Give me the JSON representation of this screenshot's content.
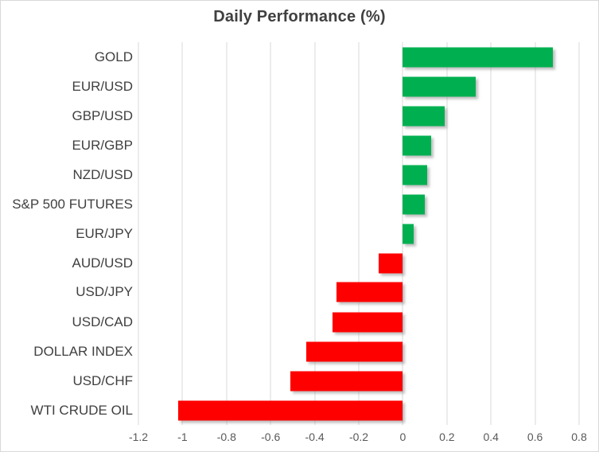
{
  "chart_data": {
    "type": "bar",
    "orientation": "horizontal",
    "title": "Daily Performance (%)",
    "categories": [
      "GOLD",
      "EUR/USD",
      "GBP/USD",
      "EUR/GBP",
      "NZD/USD",
      "S&P 500 FUTURES",
      "EUR/JPY",
      "AUD/USD",
      "USD/JPY",
      "USD/CAD",
      "DOLLAR INDEX",
      "USD/CHF",
      "WTI CRUDE OIL"
    ],
    "values": [
      0.68,
      0.33,
      0.19,
      0.13,
      0.11,
      0.1,
      0.05,
      -0.11,
      -0.3,
      -0.32,
      -0.44,
      -0.51,
      -1.02
    ],
    "xlim": [
      -1.2,
      0.8
    ],
    "xticks": [
      -1.2,
      -1,
      -0.8,
      -0.6,
      -0.4,
      -0.2,
      0,
      0.2,
      0.4,
      0.6,
      0.8
    ],
    "xtick_labels": [
      "-1.2",
      "-1",
      "-0.8",
      "-0.6",
      "-0.4",
      "-0.2",
      "0",
      "0.2",
      "0.4",
      "0.6",
      "0.8"
    ],
    "grid": true,
    "legend": "none",
    "positive_color": "#00B050",
    "negative_color": "#FF0000",
    "gridline_color": "#D9D9D9",
    "title_color": "#404040",
    "label_color": "#404040",
    "tick_color": "#595959"
  }
}
